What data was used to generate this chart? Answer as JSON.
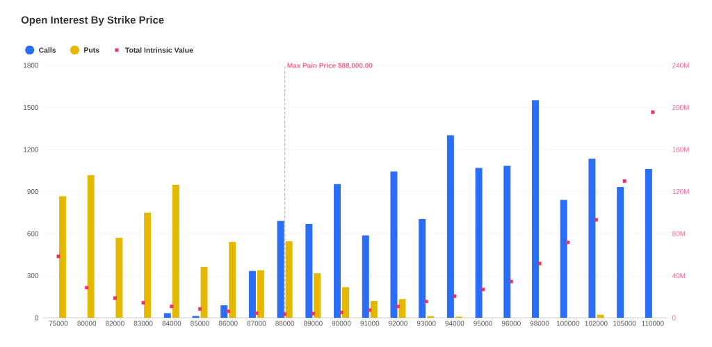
{
  "chart_data": {
    "type": "bar",
    "title": "Open Interest By Strike Price",
    "categories": [
      "75000",
      "80000",
      "82000",
      "83000",
      "84000",
      "85000",
      "86000",
      "87000",
      "88000",
      "89000",
      "90000",
      "91000",
      "92000",
      "93000",
      "94000",
      "95000",
      "96000",
      "98000",
      "100000",
      "102000",
      "105000",
      "110000"
    ],
    "series": [
      {
        "name": "Calls",
        "color": "#2b6ef6",
        "values": [
          null,
          null,
          null,
          null,
          33,
          13,
          89,
          334,
          690,
          669,
          953,
          588,
          1044,
          704,
          1302,
          1069,
          1083,
          1551,
          840,
          1134,
          932,
          1061
        ]
      },
      {
        "name": "Puts",
        "color": "#e5b800",
        "values": [
          867,
          1016,
          570,
          750,
          948,
          363,
          540,
          339,
          545,
          317,
          218,
          120,
          133,
          12,
          8,
          null,
          null,
          null,
          null,
          22,
          null,
          null
        ]
      },
      {
        "name": "Total Intrinsic Value",
        "type": "scatter",
        "marker": "square",
        "axis": "y2",
        "color": "#e9336b",
        "values": [
          58400000,
          28600000,
          18700000,
          14300000,
          10800000,
          8400000,
          6200000,
          4400000,
          3500000,
          4000000,
          5100000,
          7300000,
          10800000,
          15500000,
          20600000,
          27000000,
          34500000,
          51600000,
          71700000,
          93200000,
          130000000,
          195500000
        ]
      }
    ],
    "ylim": [
      0,
      1800
    ],
    "yticks": [
      0,
      300,
      600,
      900,
      1200,
      1500,
      1800
    ],
    "y2lim": [
      0,
      240000000
    ],
    "y2ticks": [
      0,
      {
        "value": 40000000,
        "label": "40M"
      },
      {
        "value": 80000000,
        "label": "80M"
      },
      {
        "value": 120000000,
        "label": "120M"
      },
      {
        "value": 160000000,
        "label": "160M"
      },
      {
        "value": 200000000,
        "label": "200M"
      },
      {
        "value": 240000000,
        "label": "240M"
      }
    ],
    "ref_lines": [
      {
        "axis": "x",
        "value": "88000",
        "label": "Max Pain Price $88,000.00",
        "color": "#f06a96",
        "line_style": "dashed"
      }
    ],
    "grid": "y",
    "legend": "top left"
  }
}
